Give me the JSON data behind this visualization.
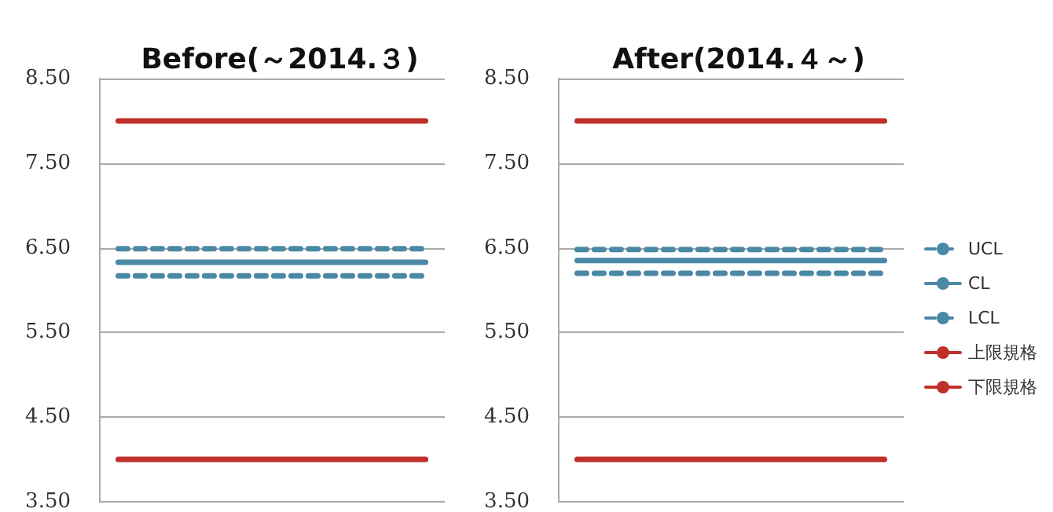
{
  "chart_data": [
    {
      "type": "line",
      "title": "Before(～2014.３)",
      "categories": [
        null,
        null,
        null,
        null,
        null,
        null,
        null,
        null,
        null
      ],
      "ylim": [
        3.5,
        8.5
      ],
      "yticks": [
        {
          "value": 3.5,
          "label": "3.50"
        },
        {
          "value": 4.5,
          "label": "4.50"
        },
        {
          "value": 5.5,
          "label": "5.50"
        },
        {
          "value": 6.5,
          "label": "6.50"
        },
        {
          "value": 7.5,
          "label": "7.50"
        },
        {
          "value": 8.5,
          "label": "8.50"
        }
      ],
      "grid": "y",
      "tick_labels": "y",
      "legend": false,
      "marker": "none",
      "series": [
        {
          "color": "#4a89a6",
          "line_style": "dashed",
          "values": [
            6.49,
            6.49,
            6.49,
            6.49,
            6.49,
            6.49,
            6.49,
            6.49,
            6.49
          ]
        },
        {
          "color": "#4a89a6",
          "line_style": "solid",
          "values": [
            6.33,
            6.33,
            6.33,
            6.33,
            6.33,
            6.33,
            6.33,
            6.33,
            6.33
          ]
        },
        {
          "color": "#4a89a6",
          "line_style": "dashed",
          "values": [
            6.17,
            6.17,
            6.17,
            6.17,
            6.17,
            6.17,
            6.17,
            6.17,
            6.17
          ]
        },
        {
          "color": "#c0302b",
          "line_style": "solid",
          "values": [
            8,
            8,
            8,
            8,
            8,
            8,
            8,
            8,
            8
          ]
        },
        {
          "color": "#c0302b",
          "line_style": "solid",
          "values": [
            4,
            4,
            4,
            4,
            4,
            4,
            4,
            4,
            4
          ]
        }
      ]
    },
    {
      "type": "line",
      "title": "After(2014.４～)",
      "categories": [
        null,
        null,
        null,
        null,
        null,
        null,
        null,
        null,
        null
      ],
      "ylim": [
        3.5,
        8.5
      ],
      "yticks": [
        {
          "value": 3.5,
          "label": "3.50"
        },
        {
          "value": 4.5,
          "label": "4.50"
        },
        {
          "value": 5.5,
          "label": "5.50"
        },
        {
          "value": 6.5,
          "label": "6.50"
        },
        {
          "value": 7.5,
          "label": "7.50"
        },
        {
          "value": 8.5,
          "label": "8.50"
        }
      ],
      "grid": "y",
      "tick_labels": "y",
      "legend": "right",
      "marker": "none",
      "series": [
        {
          "name": "UCL",
          "color": "#4a89a6",
          "line_style": "dashed",
          "values": [
            6.48,
            6.48,
            6.48,
            6.48,
            6.48,
            6.48,
            6.48,
            6.48,
            6.48
          ]
        },
        {
          "name": "CL",
          "color": "#4a89a6",
          "line_style": "solid",
          "values": [
            6.35,
            6.35,
            6.35,
            6.35,
            6.35,
            6.35,
            6.35,
            6.35,
            6.35
          ]
        },
        {
          "name": "LCL",
          "color": "#4a89a6",
          "line_style": "dashed",
          "values": [
            6.2,
            6.2,
            6.2,
            6.2,
            6.2,
            6.2,
            6.2,
            6.2,
            6.2
          ]
        },
        {
          "name": "上限規格",
          "color": "#c0302b",
          "line_style": "solid",
          "values": [
            8,
            8,
            8,
            8,
            8,
            8,
            8,
            8,
            8
          ]
        },
        {
          "name": "下限規格",
          "color": "#c0302b",
          "line_style": "solid",
          "values": [
            4,
            4,
            4,
            4,
            4,
            4,
            4,
            4,
            4
          ]
        }
      ]
    }
  ]
}
